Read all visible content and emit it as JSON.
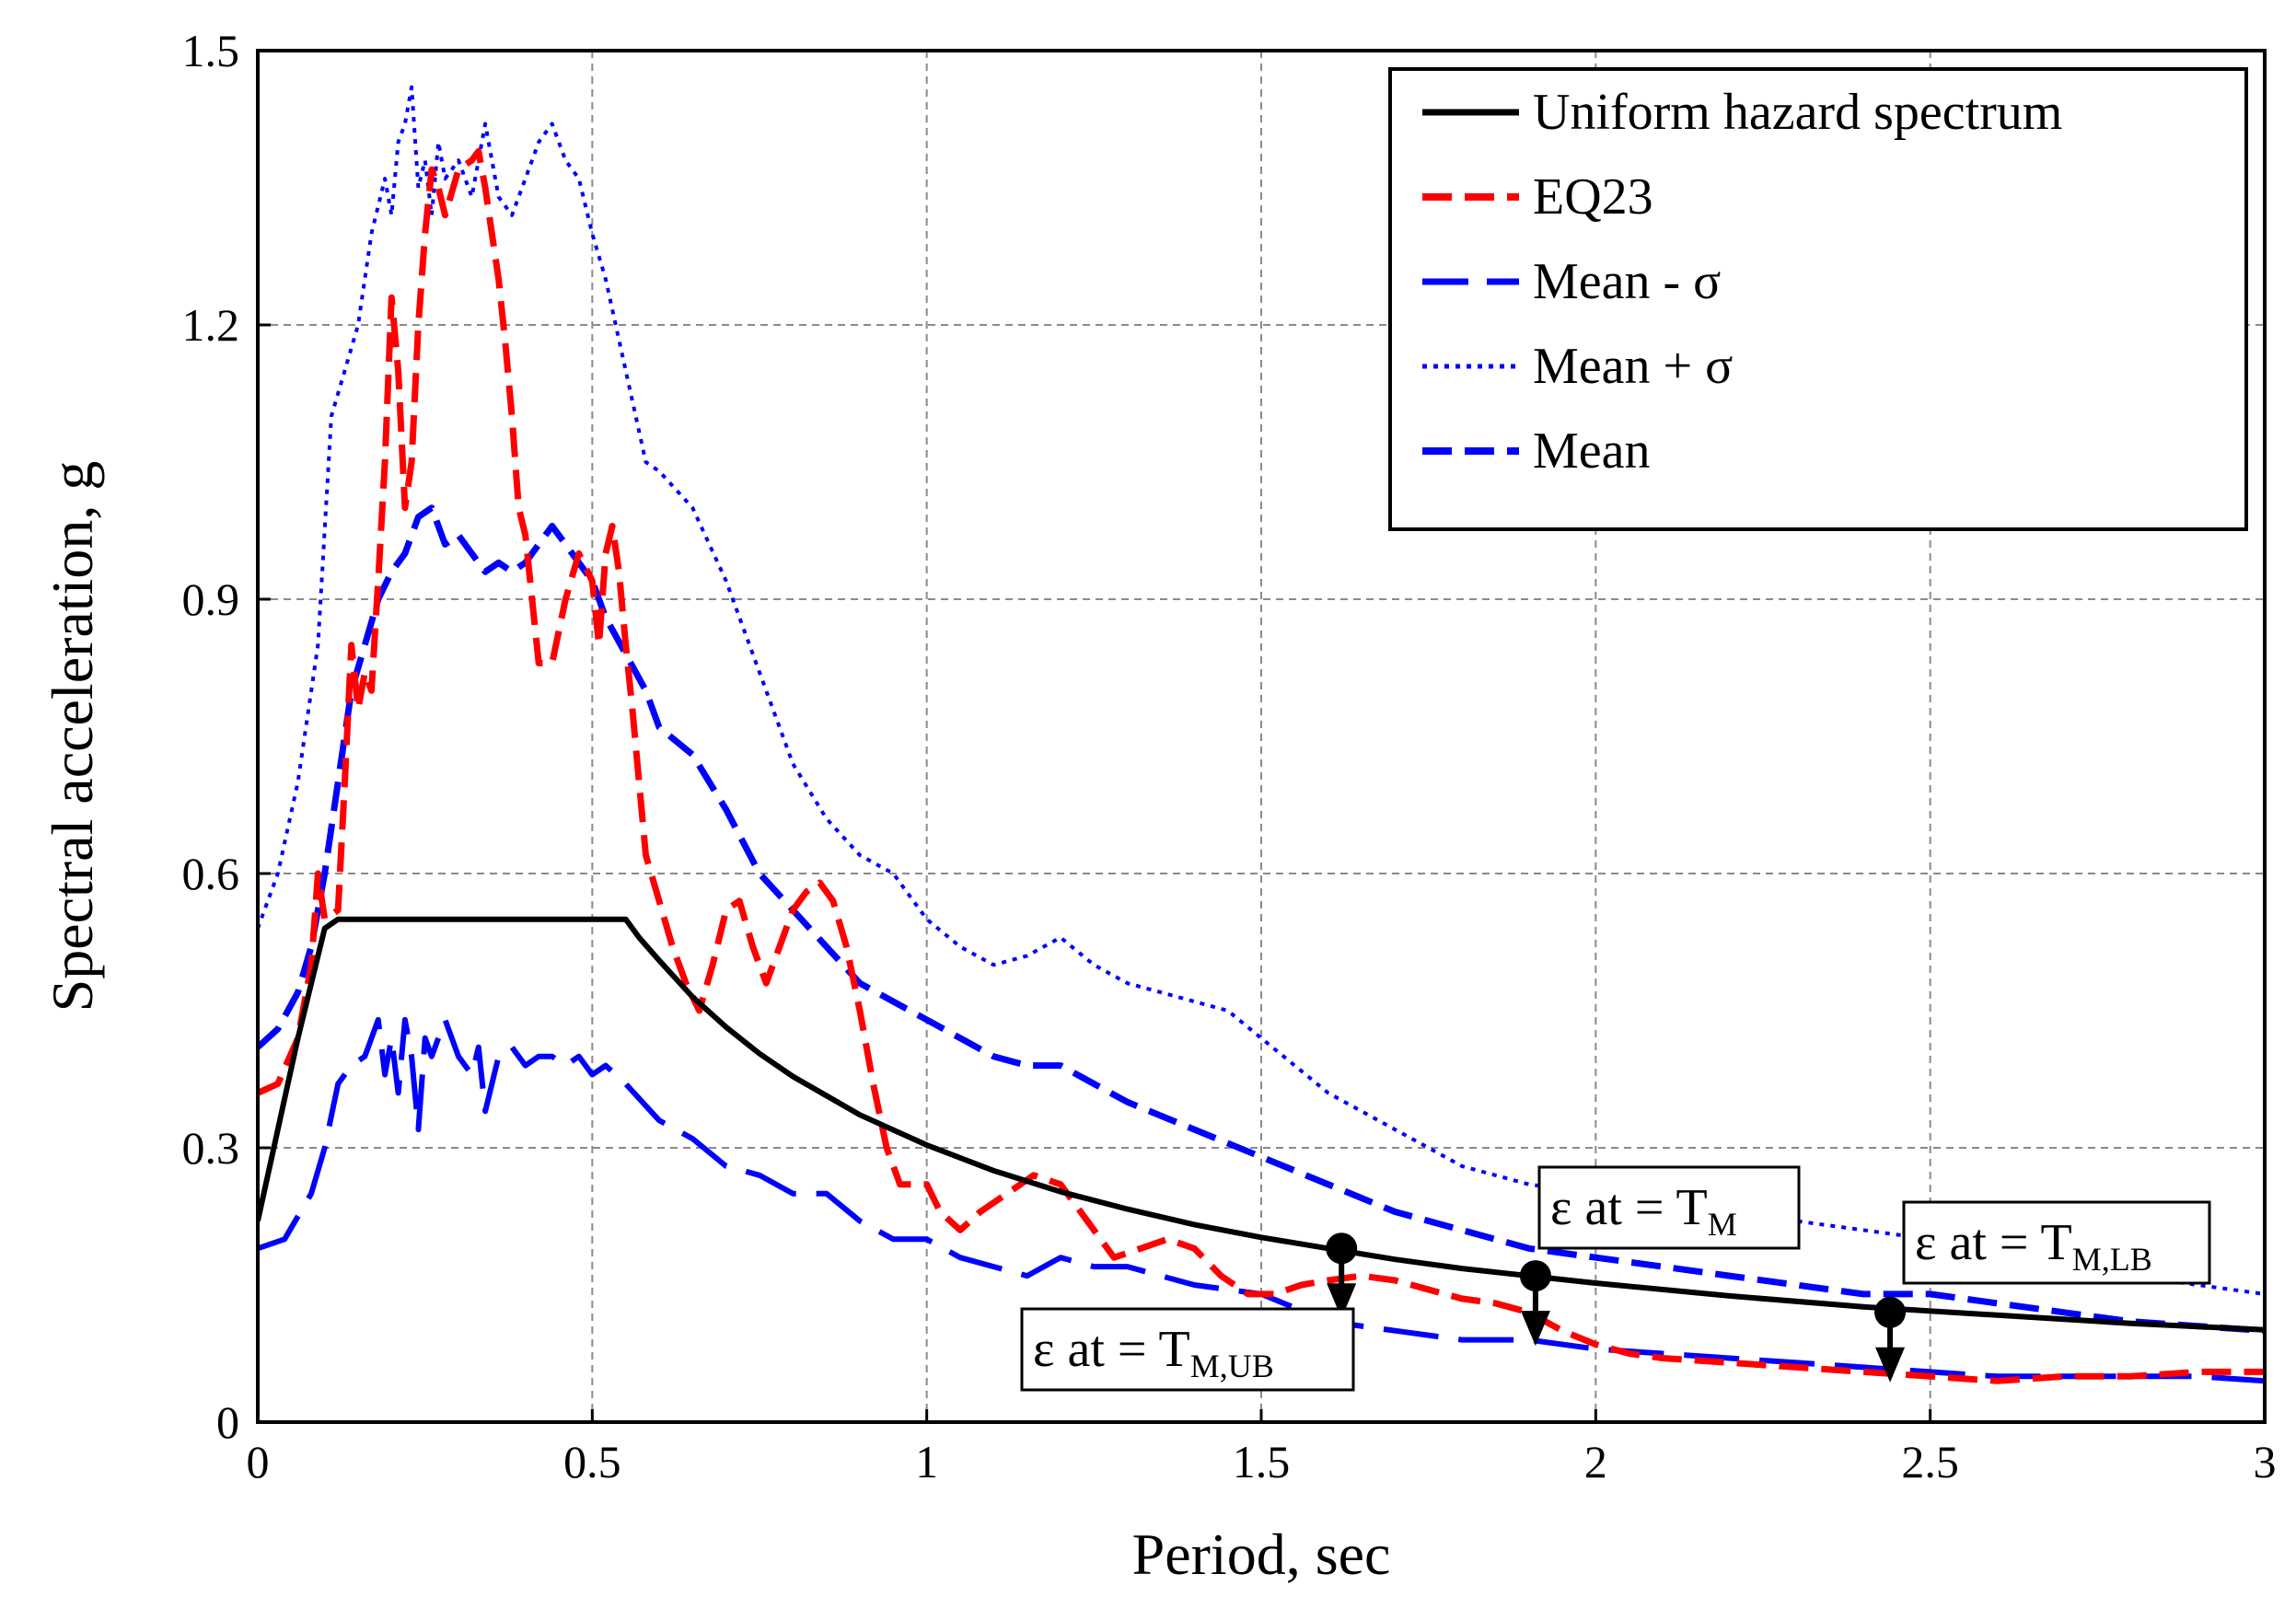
{
  "chart_data": {
    "type": "line",
    "title": "",
    "xlabel": "Period, sec",
    "ylabel": "Spectral acceleration, g",
    "xlim": [
      0,
      3
    ],
    "ylim": [
      0,
      1.5
    ],
    "grid": true,
    "legend_position": "top-right",
    "xticks": [
      0,
      0.5,
      1,
      1.5,
      2,
      2.5,
      3
    ],
    "yticks": [
      0,
      0.3,
      0.6,
      0.9,
      1.2,
      1.5
    ],
    "xtick_labels": [
      "0",
      "0.5",
      "1",
      "1.5",
      "2",
      "2.5",
      "3"
    ],
    "ytick_labels": [
      "0",
      "0.3",
      "0.6",
      "0.9",
      "1.2",
      "1.5"
    ],
    "series": [
      {
        "name": "Uniform hazard spectrum",
        "color": "#000000",
        "style": "solid",
        "x": [
          0,
          0.03,
          0.06,
          0.1,
          0.12,
          0.55,
          0.57,
          0.6,
          0.65,
          0.7,
          0.75,
          0.8,
          0.9,
          1,
          1.1,
          1.2,
          1.3,
          1.4,
          1.5,
          1.6,
          1.7,
          1.8,
          1.9,
          2,
          2.2,
          2.4,
          2.6,
          2.8,
          3
        ],
        "y": [
          0.22,
          0.32,
          0.42,
          0.54,
          0.55,
          0.55,
          0.53,
          0.505,
          0.465,
          0.432,
          0.403,
          0.378,
          0.336,
          0.303,
          0.275,
          0.252,
          0.233,
          0.216,
          0.202,
          0.19,
          0.178,
          0.168,
          0.16,
          0.152,
          0.138,
          0.126,
          0.117,
          0.108,
          0.101
        ]
      },
      {
        "name": "EQ23",
        "color": "#ff0000",
        "style": "dashed",
        "x": [
          0,
          0.03,
          0.06,
          0.08,
          0.09,
          0.1,
          0.12,
          0.13,
          0.14,
          0.15,
          0.16,
          0.17,
          0.18,
          0.19,
          0.2,
          0.21,
          0.22,
          0.23,
          0.24,
          0.25,
          0.26,
          0.27,
          0.28,
          0.3,
          0.32,
          0.33,
          0.34,
          0.35,
          0.36,
          0.37,
          0.38,
          0.39,
          0.4,
          0.42,
          0.44,
          0.46,
          0.48,
          0.5,
          0.51,
          0.52,
          0.53,
          0.54,
          0.55,
          0.56,
          0.57,
          0.58,
          0.6,
          0.62,
          0.64,
          0.66,
          0.68,
          0.7,
          0.72,
          0.74,
          0.76,
          0.78,
          0.8,
          0.82,
          0.84,
          0.86,
          0.88,
          0.9,
          0.92,
          0.94,
          0.96,
          0.98,
          1,
          1.02,
          1.05,
          1.08,
          1.12,
          1.16,
          1.2,
          1.24,
          1.28,
          1.32,
          1.36,
          1.4,
          1.44,
          1.48,
          1.52,
          1.56,
          1.6,
          1.65,
          1.7,
          1.75,
          1.8,
          1.85,
          1.9,
          1.95,
          2,
          2.05,
          2.1,
          2.2,
          2.3,
          2.4,
          2.5,
          2.6,
          2.7,
          2.8,
          2.9,
          3
        ],
        "y": [
          0.36,
          0.37,
          0.42,
          0.5,
          0.6,
          0.55,
          0.56,
          0.7,
          0.85,
          0.78,
          0.82,
          0.8,
          0.92,
          1.05,
          1.23,
          1.15,
          1.0,
          1.05,
          1.2,
          1.3,
          1.37,
          1.35,
          1.32,
          1.37,
          1.38,
          1.39,
          1.35,
          1.3,
          1.25,
          1.18,
          1.1,
          1.0,
          0.97,
          0.83,
          0.83,
          0.9,
          0.95,
          0.92,
          0.85,
          0.95,
          0.98,
          0.93,
          0.85,
          0.78,
          0.7,
          0.62,
          0.57,
          0.52,
          0.48,
          0.45,
          0.5,
          0.56,
          0.57,
          0.52,
          0.48,
          0.52,
          0.56,
          0.58,
          0.59,
          0.57,
          0.52,
          0.45,
          0.37,
          0.3,
          0.26,
          0.26,
          0.26,
          0.23,
          0.21,
          0.23,
          0.25,
          0.27,
          0.26,
          0.22,
          0.18,
          0.19,
          0.2,
          0.19,
          0.16,
          0.14,
          0.14,
          0.15,
          0.155,
          0.16,
          0.155,
          0.145,
          0.135,
          0.13,
          0.12,
          0.1,
          0.085,
          0.075,
          0.07,
          0.065,
          0.06,
          0.055,
          0.05,
          0.045,
          0.05,
          0.05,
          0.055,
          0.055
        ]
      },
      {
        "name": "Mean - σ",
        "color": "#0000ff",
        "style": "long-dash",
        "x": [
          0,
          0.04,
          0.08,
          0.1,
          0.12,
          0.14,
          0.16,
          0.18,
          0.19,
          0.2,
          0.21,
          0.22,
          0.23,
          0.24,
          0.25,
          0.26,
          0.28,
          0.3,
          0.32,
          0.33,
          0.34,
          0.36,
          0.38,
          0.4,
          0.42,
          0.44,
          0.46,
          0.48,
          0.5,
          0.52,
          0.55,
          0.6,
          0.65,
          0.7,
          0.75,
          0.8,
          0.85,
          0.9,
          0.95,
          1,
          1.05,
          1.1,
          1.15,
          1.2,
          1.25,
          1.3,
          1.35,
          1.4,
          1.5,
          1.6,
          1.7,
          1.8,
          1.9,
          2,
          2.1,
          2.2,
          2.3,
          2.4,
          2.5,
          2.6,
          2.7,
          2.8,
          2.9,
          3
        ],
        "y": [
          0.19,
          0.2,
          0.25,
          0.3,
          0.37,
          0.39,
          0.4,
          0.44,
          0.38,
          0.42,
          0.36,
          0.44,
          0.4,
          0.32,
          0.42,
          0.4,
          0.44,
          0.4,
          0.38,
          0.41,
          0.34,
          0.4,
          0.41,
          0.39,
          0.4,
          0.4,
          0.39,
          0.4,
          0.38,
          0.39,
          0.37,
          0.33,
          0.31,
          0.28,
          0.27,
          0.25,
          0.25,
          0.22,
          0.2,
          0.2,
          0.18,
          0.17,
          0.16,
          0.18,
          0.17,
          0.17,
          0.16,
          0.15,
          0.14,
          0.11,
          0.1,
          0.09,
          0.09,
          0.08,
          0.075,
          0.07,
          0.065,
          0.06,
          0.055,
          0.05,
          0.05,
          0.05,
          0.05,
          0.045
        ]
      },
      {
        "name": "Mean + σ",
        "color": "#0000ff",
        "style": "dotted",
        "x": [
          0,
          0.03,
          0.06,
          0.09,
          0.11,
          0.13,
          0.15,
          0.17,
          0.19,
          0.2,
          0.21,
          0.22,
          0.23,
          0.24,
          0.25,
          0.26,
          0.27,
          0.28,
          0.3,
          0.32,
          0.34,
          0.36,
          0.38,
          0.4,
          0.42,
          0.44,
          0.46,
          0.48,
          0.5,
          0.52,
          0.55,
          0.58,
          0.6,
          0.65,
          0.7,
          0.75,
          0.8,
          0.85,
          0.9,
          0.95,
          1,
          1.05,
          1.1,
          1.15,
          1.2,
          1.25,
          1.3,
          1.35,
          1.4,
          1.45,
          1.5,
          1.6,
          1.7,
          1.8,
          1.9,
          2,
          2.1,
          2.2,
          2.3,
          2.4,
          2.5,
          2.6,
          2.7,
          2.8,
          2.9,
          3
        ],
        "y": [
          0.54,
          0.6,
          0.7,
          0.85,
          1.1,
          1.15,
          1.2,
          1.3,
          1.36,
          1.32,
          1.4,
          1.42,
          1.46,
          1.35,
          1.38,
          1.32,
          1.4,
          1.36,
          1.38,
          1.34,
          1.42,
          1.34,
          1.32,
          1.36,
          1.4,
          1.42,
          1.38,
          1.36,
          1.3,
          1.25,
          1.15,
          1.05,
          1.04,
          1.0,
          0.92,
          0.82,
          0.72,
          0.66,
          0.62,
          0.6,
          0.55,
          0.52,
          0.5,
          0.51,
          0.53,
          0.5,
          0.48,
          0.47,
          0.46,
          0.45,
          0.42,
          0.36,
          0.32,
          0.28,
          0.26,
          0.25,
          0.24,
          0.23,
          0.22,
          0.21,
          0.2,
          0.18,
          0.17,
          0.16,
          0.15,
          0.14
        ]
      },
      {
        "name": "Mean",
        "color": "#0000ff",
        "style": "dashed",
        "x": [
          0,
          0.03,
          0.06,
          0.08,
          0.1,
          0.12,
          0.14,
          0.16,
          0.18,
          0.2,
          0.22,
          0.24,
          0.26,
          0.28,
          0.3,
          0.32,
          0.34,
          0.36,
          0.38,
          0.4,
          0.42,
          0.44,
          0.46,
          0.48,
          0.5,
          0.52,
          0.55,
          0.58,
          0.6,
          0.65,
          0.7,
          0.75,
          0.8,
          0.85,
          0.9,
          0.95,
          1,
          1.05,
          1.1,
          1.15,
          1.2,
          1.25,
          1.3,
          1.4,
          1.5,
          1.6,
          1.7,
          1.8,
          1.9,
          2,
          2.1,
          2.2,
          2.3,
          2.4,
          2.5,
          2.6,
          2.7,
          2.8,
          2.9,
          3
        ],
        "y": [
          0.41,
          0.43,
          0.47,
          0.52,
          0.6,
          0.7,
          0.8,
          0.85,
          0.9,
          0.93,
          0.95,
          0.99,
          1.0,
          0.96,
          0.97,
          0.95,
          0.93,
          0.94,
          0.93,
          0.94,
          0.96,
          0.98,
          0.96,
          0.94,
          0.92,
          0.88,
          0.84,
          0.8,
          0.76,
          0.73,
          0.67,
          0.6,
          0.56,
          0.52,
          0.48,
          0.46,
          0.44,
          0.42,
          0.4,
          0.39,
          0.39,
          0.37,
          0.35,
          0.32,
          0.29,
          0.26,
          0.23,
          0.21,
          0.19,
          0.18,
          0.17,
          0.16,
          0.15,
          0.14,
          0.14,
          0.13,
          0.12,
          0.11,
          0.105,
          0.1
        ]
      }
    ],
    "annotations": [
      {
        "text": "ε at = T",
        "subscript": "M",
        "point_x": 1.91,
        "point_y": 0.16
      },
      {
        "text": "ε at = T",
        "subscript": "M,LB",
        "point_x": 2.44,
        "point_y": 0.12
      },
      {
        "text": "ε at = T",
        "subscript": "M,UB",
        "point_x": 1.62,
        "point_y": 0.19
      }
    ]
  }
}
